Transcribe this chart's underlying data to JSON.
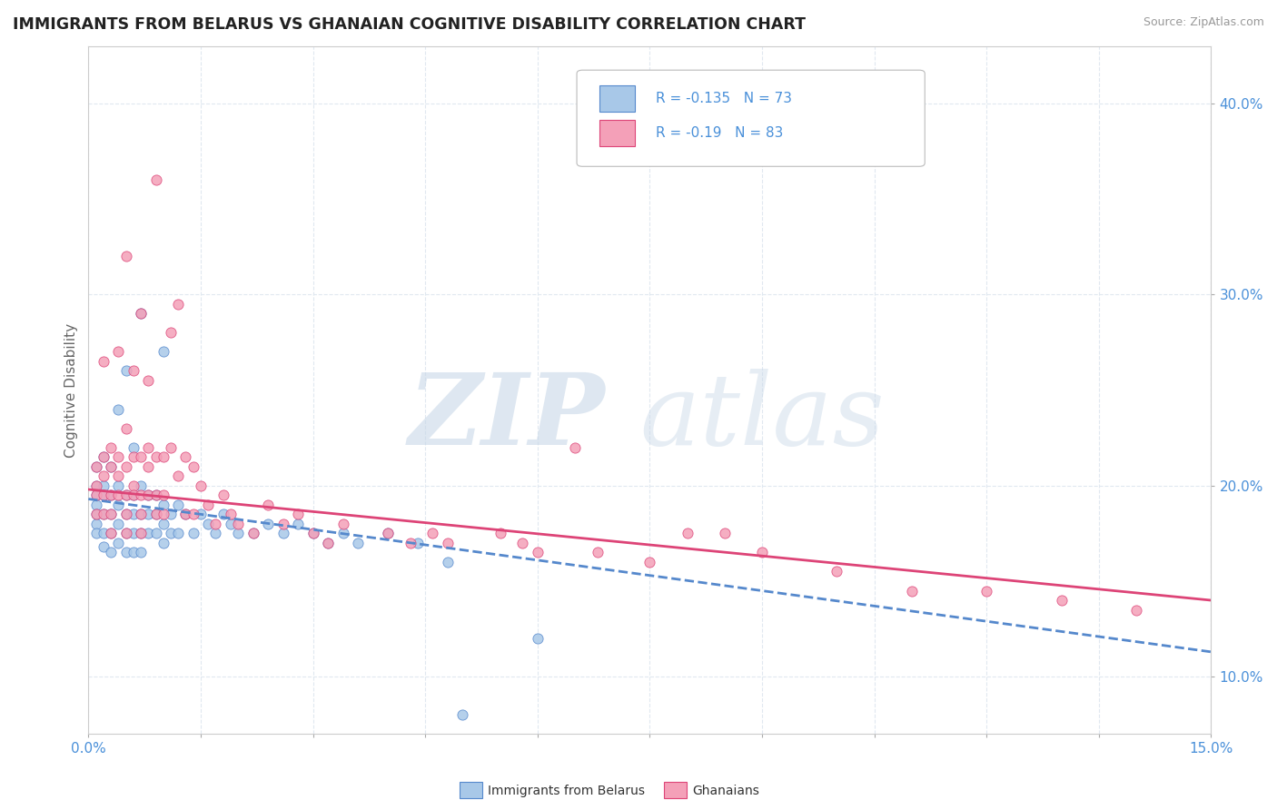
{
  "title": "IMMIGRANTS FROM BELARUS VS GHANAIAN COGNITIVE DISABILITY CORRELATION CHART",
  "source": "Source: ZipAtlas.com",
  "xlabel_label": "Immigrants from Belarus",
  "ylabel_label": "Cognitive Disability",
  "xlim": [
    0.0,
    0.15
  ],
  "ylim": [
    0.07,
    0.43
  ],
  "xticks": [
    0.0,
    0.015,
    0.03,
    0.045,
    0.06,
    0.075,
    0.09,
    0.105,
    0.12,
    0.135,
    0.15
  ],
  "xtick_labels": [
    "0.0%",
    "",
    "",
    "",
    "",
    "",
    "",
    "",
    "",
    "",
    "15.0%"
  ],
  "yticks": [
    0.1,
    0.2,
    0.3,
    0.4
  ],
  "ytick_labels": [
    "10.0%",
    "20.0%",
    "30.0%",
    "40.0%"
  ],
  "blue_color": "#a8c8e8",
  "pink_color": "#f4a0b8",
  "blue_line_color": "#5588cc",
  "pink_line_color": "#dd4477",
  "axis_text_color": "#4a90d9",
  "R_blue": -0.135,
  "N_blue": 73,
  "R_pink": -0.19,
  "N_pink": 83,
  "background_color": "#ffffff",
  "grid_color": "#e0e8f0",
  "blue_scatter": [
    [
      0.001,
      0.2
    ],
    [
      0.001,
      0.195
    ],
    [
      0.001,
      0.19
    ],
    [
      0.001,
      0.185
    ],
    [
      0.001,
      0.18
    ],
    [
      0.001,
      0.175
    ],
    [
      0.001,
      0.21
    ],
    [
      0.002,
      0.2
    ],
    [
      0.002,
      0.195
    ],
    [
      0.002,
      0.185
    ],
    [
      0.002,
      0.175
    ],
    [
      0.002,
      0.168
    ],
    [
      0.002,
      0.215
    ],
    [
      0.003,
      0.195
    ],
    [
      0.003,
      0.185
    ],
    [
      0.003,
      0.175
    ],
    [
      0.003,
      0.21
    ],
    [
      0.003,
      0.165
    ],
    [
      0.004,
      0.2
    ],
    [
      0.004,
      0.19
    ],
    [
      0.004,
      0.18
    ],
    [
      0.004,
      0.17
    ],
    [
      0.004,
      0.24
    ],
    [
      0.005,
      0.195
    ],
    [
      0.005,
      0.185
    ],
    [
      0.005,
      0.175
    ],
    [
      0.005,
      0.165
    ],
    [
      0.005,
      0.26
    ],
    [
      0.006,
      0.22
    ],
    [
      0.006,
      0.195
    ],
    [
      0.006,
      0.185
    ],
    [
      0.006,
      0.175
    ],
    [
      0.006,
      0.165
    ],
    [
      0.007,
      0.29
    ],
    [
      0.007,
      0.2
    ],
    [
      0.007,
      0.185
    ],
    [
      0.007,
      0.175
    ],
    [
      0.007,
      0.165
    ],
    [
      0.008,
      0.195
    ],
    [
      0.008,
      0.185
    ],
    [
      0.008,
      0.175
    ],
    [
      0.009,
      0.195
    ],
    [
      0.009,
      0.185
    ],
    [
      0.009,
      0.175
    ],
    [
      0.01,
      0.27
    ],
    [
      0.01,
      0.19
    ],
    [
      0.01,
      0.18
    ],
    [
      0.01,
      0.17
    ],
    [
      0.011,
      0.185
    ],
    [
      0.011,
      0.175
    ],
    [
      0.012,
      0.19
    ],
    [
      0.012,
      0.175
    ],
    [
      0.013,
      0.185
    ],
    [
      0.014,
      0.175
    ],
    [
      0.015,
      0.185
    ],
    [
      0.016,
      0.18
    ],
    [
      0.017,
      0.175
    ],
    [
      0.018,
      0.185
    ],
    [
      0.019,
      0.18
    ],
    [
      0.02,
      0.175
    ],
    [
      0.022,
      0.175
    ],
    [
      0.024,
      0.18
    ],
    [
      0.026,
      0.175
    ],
    [
      0.028,
      0.18
    ],
    [
      0.03,
      0.175
    ],
    [
      0.032,
      0.17
    ],
    [
      0.034,
      0.175
    ],
    [
      0.036,
      0.17
    ],
    [
      0.04,
      0.175
    ],
    [
      0.044,
      0.17
    ],
    [
      0.048,
      0.16
    ],
    [
      0.05,
      0.08
    ],
    [
      0.06,
      0.12
    ]
  ],
  "pink_scatter": [
    [
      0.001,
      0.21
    ],
    [
      0.001,
      0.2
    ],
    [
      0.001,
      0.195
    ],
    [
      0.001,
      0.185
    ],
    [
      0.002,
      0.215
    ],
    [
      0.002,
      0.205
    ],
    [
      0.002,
      0.195
    ],
    [
      0.002,
      0.185
    ],
    [
      0.002,
      0.265
    ],
    [
      0.003,
      0.22
    ],
    [
      0.003,
      0.21
    ],
    [
      0.003,
      0.195
    ],
    [
      0.003,
      0.185
    ],
    [
      0.003,
      0.175
    ],
    [
      0.004,
      0.215
    ],
    [
      0.004,
      0.205
    ],
    [
      0.004,
      0.195
    ],
    [
      0.004,
      0.27
    ],
    [
      0.005,
      0.23
    ],
    [
      0.005,
      0.21
    ],
    [
      0.005,
      0.195
    ],
    [
      0.005,
      0.185
    ],
    [
      0.005,
      0.175
    ],
    [
      0.005,
      0.32
    ],
    [
      0.006,
      0.215
    ],
    [
      0.006,
      0.2
    ],
    [
      0.006,
      0.195
    ],
    [
      0.006,
      0.26
    ],
    [
      0.007,
      0.29
    ],
    [
      0.007,
      0.215
    ],
    [
      0.007,
      0.195
    ],
    [
      0.007,
      0.185
    ],
    [
      0.007,
      0.175
    ],
    [
      0.008,
      0.22
    ],
    [
      0.008,
      0.21
    ],
    [
      0.008,
      0.195
    ],
    [
      0.008,
      0.255
    ],
    [
      0.009,
      0.36
    ],
    [
      0.009,
      0.215
    ],
    [
      0.009,
      0.195
    ],
    [
      0.009,
      0.185
    ],
    [
      0.01,
      0.215
    ],
    [
      0.01,
      0.195
    ],
    [
      0.01,
      0.185
    ],
    [
      0.011,
      0.22
    ],
    [
      0.011,
      0.28
    ],
    [
      0.012,
      0.205
    ],
    [
      0.012,
      0.295
    ],
    [
      0.013,
      0.215
    ],
    [
      0.013,
      0.185
    ],
    [
      0.014,
      0.21
    ],
    [
      0.014,
      0.185
    ],
    [
      0.015,
      0.2
    ],
    [
      0.016,
      0.19
    ],
    [
      0.017,
      0.18
    ],
    [
      0.018,
      0.195
    ],
    [
      0.019,
      0.185
    ],
    [
      0.02,
      0.18
    ],
    [
      0.022,
      0.175
    ],
    [
      0.024,
      0.19
    ],
    [
      0.026,
      0.18
    ],
    [
      0.028,
      0.185
    ],
    [
      0.03,
      0.175
    ],
    [
      0.032,
      0.17
    ],
    [
      0.034,
      0.18
    ],
    [
      0.04,
      0.175
    ],
    [
      0.043,
      0.17
    ],
    [
      0.046,
      0.175
    ],
    [
      0.048,
      0.17
    ],
    [
      0.055,
      0.175
    ],
    [
      0.058,
      0.17
    ],
    [
      0.06,
      0.165
    ],
    [
      0.065,
      0.22
    ],
    [
      0.068,
      0.165
    ],
    [
      0.075,
      0.16
    ],
    [
      0.08,
      0.175
    ],
    [
      0.085,
      0.175
    ],
    [
      0.09,
      0.165
    ],
    [
      0.1,
      0.155
    ],
    [
      0.11,
      0.145
    ],
    [
      0.12,
      0.145
    ],
    [
      0.13,
      0.14
    ],
    [
      0.14,
      0.135
    ]
  ],
  "blue_trend_x": [
    0.0,
    0.15
  ],
  "blue_trend_y": [
    0.193,
    0.113
  ],
  "pink_trend_x": [
    0.0,
    0.15
  ],
  "pink_trend_y": [
    0.198,
    0.14
  ]
}
